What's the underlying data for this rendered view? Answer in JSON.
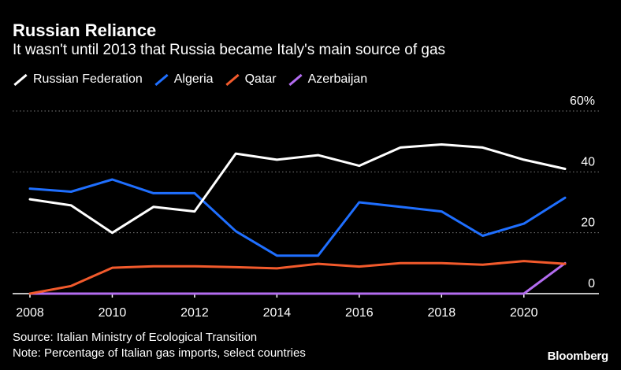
{
  "title": "Russian Reliance",
  "subtitle": "It wasn't until 2013 that Russia became Italy's main source of gas",
  "source": "Source: Italian Ministry of Ecological Transition",
  "note": "Note: Percentage of Italian gas imports, select countries",
  "brand": "Bloomberg",
  "colors": {
    "background": "#000000",
    "Russian Federation": "#ffffff",
    "Algeria": "#1f6fff",
    "Qatar": "#f25a2c",
    "Azerbaijan": "#b36cf0"
  },
  "chart_data": {
    "type": "line",
    "title": "Russian Reliance",
    "subtitle": "It wasn't until 2013 that Russia became Italy's main source of gas",
    "x": [
      2008,
      2009,
      2010,
      2011,
      2012,
      2013,
      2014,
      2015,
      2016,
      2017,
      2018,
      2019,
      2020,
      2021
    ],
    "xlim": [
      2008,
      2021
    ],
    "x_ticks": [
      "2008",
      "2010",
      "2012",
      "2014",
      "2016",
      "2018",
      "2020"
    ],
    "ylim": [
      0,
      60
    ],
    "y_ticks": [
      "0",
      "20",
      "40",
      "60%"
    ],
    "grid": "horizontal dotted",
    "legend": "top-left",
    "series": [
      {
        "name": "Russian Federation",
        "values": [
          31,
          29,
          20,
          28.5,
          27,
          46,
          44,
          45.5,
          42,
          48,
          49,
          48,
          44,
          41
        ]
      },
      {
        "name": "Algeria",
        "values": [
          34.5,
          33.5,
          37.5,
          33,
          33,
          20.5,
          12.5,
          12.5,
          30,
          28.5,
          27,
          19,
          23,
          31.5
        ]
      },
      {
        "name": "Qatar",
        "values": [
          0,
          2.5,
          8.5,
          9,
          9,
          8.7,
          8.3,
          9.8,
          8.9,
          10,
          10,
          9.5,
          10.7,
          9.8
        ]
      },
      {
        "name": "Azerbaijan",
        "values": [
          0,
          0,
          0,
          0,
          0,
          0,
          0,
          0,
          0,
          0,
          0,
          0,
          0,
          10
        ]
      }
    ]
  }
}
